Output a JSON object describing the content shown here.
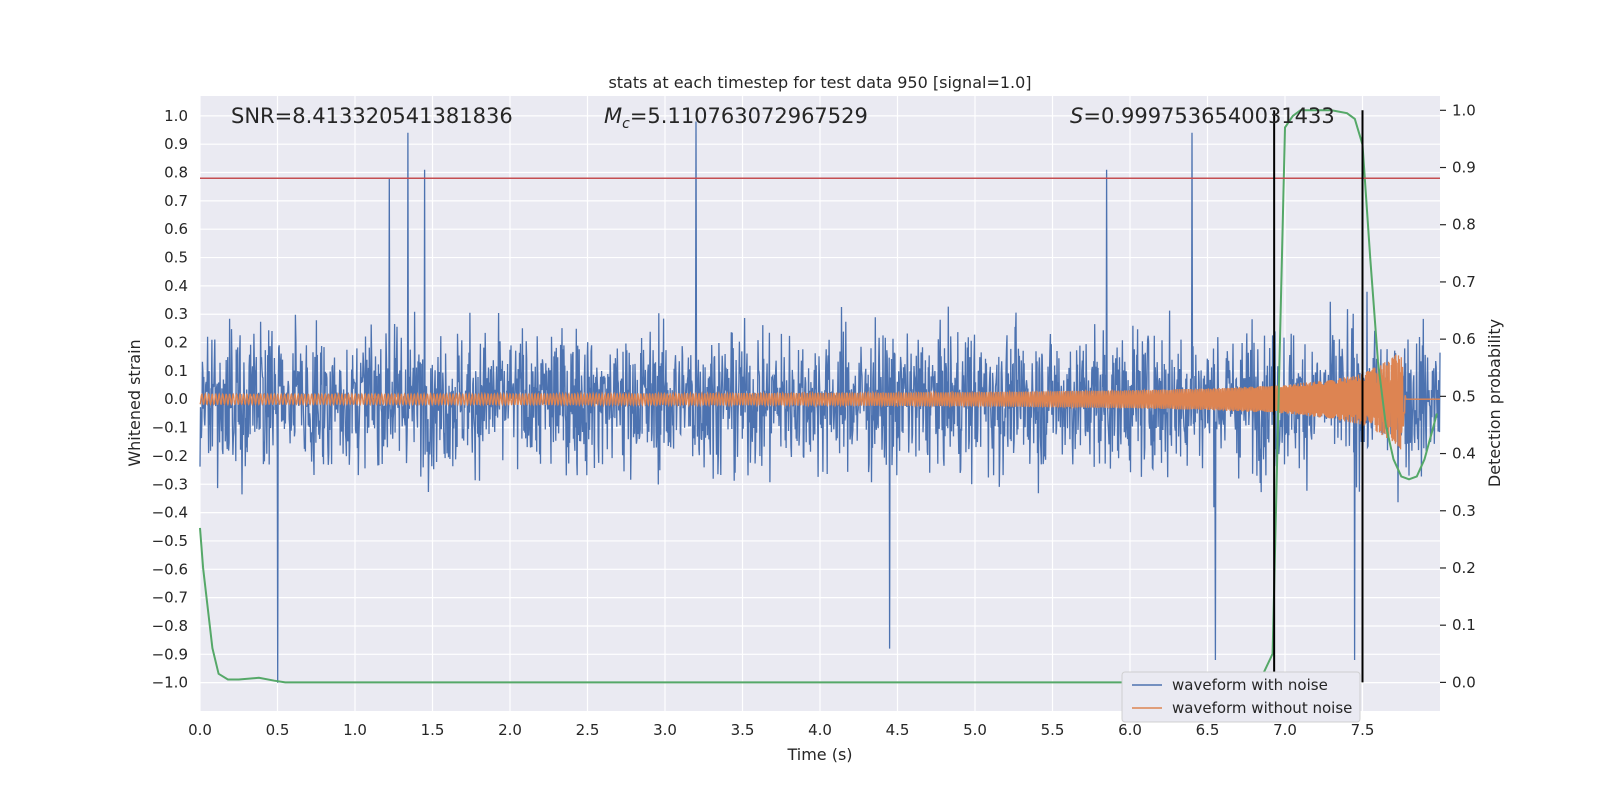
{
  "chart_data": {
    "type": "line",
    "title": "stats at each timestep for test data 950 [signal=1.0]",
    "xlabel": "Time (s)",
    "ylabel_left": "Whitened strain",
    "ylabel_right": "Detection probability",
    "xlim": [
      0.0,
      8.0
    ],
    "ylim_left": [
      -1.1,
      1.07
    ],
    "ylim_right": [
      -0.05,
      1.025
    ],
    "x_ticks": [
      "0.0",
      "0.5",
      "1.0",
      "1.5",
      "2.0",
      "2.5",
      "3.0",
      "3.5",
      "4.0",
      "4.5",
      "5.0",
      "5.5",
      "6.0",
      "6.5",
      "7.0",
      "7.5"
    ],
    "y_ticks_left": [
      "1.0",
      "0.9",
      "0.8",
      "0.7",
      "0.6",
      "0.5",
      "0.4",
      "0.3",
      "0.2",
      "0.1",
      "0.0",
      "−0.1",
      "−0.2",
      "−0.3",
      "−0.4",
      "−0.5",
      "−0.6",
      "−0.7",
      "−0.8",
      "−0.9",
      "−1.0"
    ],
    "y_ticks_right": [
      "1.0",
      "0.9",
      "0.8",
      "0.7",
      "0.6",
      "0.5",
      "0.4",
      "0.3",
      "0.2",
      "0.1",
      "0.0"
    ],
    "grid": true,
    "legend_position": "bottom-right",
    "annotations": {
      "snr": "SNR=8.413320541381836",
      "mc_symbol": "M",
      "mc_sub": "c",
      "mc_value": "=5.110763072967529",
      "s_symbol": "S",
      "s_value": "=0.9997536540031433"
    },
    "threshold_line": {
      "y": 0.78,
      "color": "#c44e52"
    },
    "vertical_lines_x": [
      6.93,
      7.5
    ],
    "series": [
      {
        "name": "waveform with noise",
        "color": "#4c72b0",
        "axis": "left",
        "description_points": {
          "spikes_x": [
            0.5,
            1.22,
            1.34,
            1.45,
            3.2,
            4.45,
            5.85,
            6.4,
            6.55,
            7.45
          ],
          "spikes_y": [
            -1.0,
            0.78,
            0.94,
            0.81,
            0.98,
            -0.88,
            0.81,
            0.94,
            -0.92,
            -0.92
          ]
        }
      },
      {
        "name": "waveform without noise",
        "color": "#dd8452",
        "axis": "left",
        "envelope_x": [
          0.0,
          1.0,
          2.0,
          3.0,
          4.0,
          5.0,
          6.0,
          6.5,
          7.0,
          7.3,
          7.5,
          7.7,
          7.75,
          7.78,
          8.0
        ],
        "envelope_y": [
          0.018,
          0.018,
          0.019,
          0.02,
          0.022,
          0.025,
          0.032,
          0.038,
          0.05,
          0.07,
          0.09,
          0.15,
          0.18,
          0.0,
          0.0
        ]
      },
      {
        "name": "",
        "color": "#55a868",
        "axis": "right",
        "x": [
          0.0,
          0.02,
          0.08,
          0.12,
          0.18,
          0.25,
          0.38,
          0.48,
          0.55,
          1.0,
          2.0,
          3.0,
          4.0,
          5.0,
          6.0,
          6.5,
          6.85,
          6.92,
          6.95,
          7.0,
          7.05,
          7.1,
          7.2,
          7.3,
          7.4,
          7.45,
          7.5,
          7.55,
          7.6,
          7.65,
          7.7,
          7.75,
          7.8,
          7.85,
          7.9,
          7.95,
          7.98
        ],
        "y": [
          0.27,
          0.2,
          0.06,
          0.015,
          0.005,
          0.005,
          0.008,
          0.003,
          0.0,
          0.0,
          0.0,
          0.0,
          0.0,
          0.0,
          0.0,
          0.0,
          0.01,
          0.05,
          0.4,
          0.97,
          0.99,
          1.0,
          1.0,
          1.0,
          0.995,
          0.985,
          0.94,
          0.74,
          0.56,
          0.45,
          0.39,
          0.36,
          0.355,
          0.36,
          0.39,
          0.44,
          0.47
        ]
      }
    ]
  }
}
